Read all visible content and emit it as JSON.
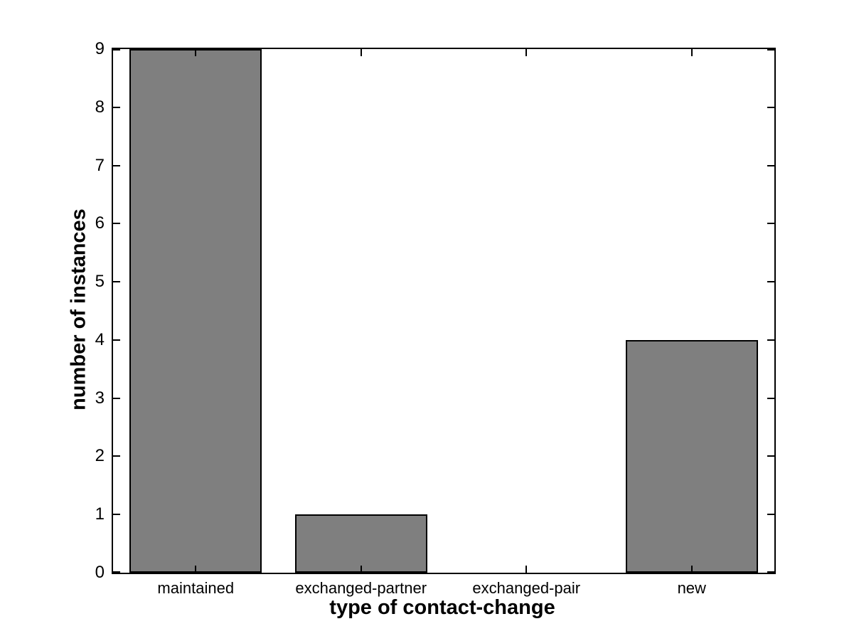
{
  "chart_data": {
    "type": "bar",
    "title": "",
    "xlabel": "type of contact-change",
    "ylabel": "number of instances",
    "categories": [
      "maintained",
      "exchanged-partner",
      "exchanged-pair",
      "new"
    ],
    "values": [
      9,
      1,
      0,
      4
    ],
    "ylim": [
      0,
      9
    ],
    "yticks": [
      0,
      1,
      2,
      3,
      4,
      5,
      6,
      7,
      8,
      9
    ],
    "grid": "off",
    "legend": "none",
    "bar_fill_color": "#7F7F7F",
    "bar_edge_color": "#000000",
    "axis_color": "#000000",
    "background_color": "#FFFFFF",
    "bar_width_fraction": 0.8,
    "box_style": "matlab-box-with-mirrored-inward-ticks"
  }
}
